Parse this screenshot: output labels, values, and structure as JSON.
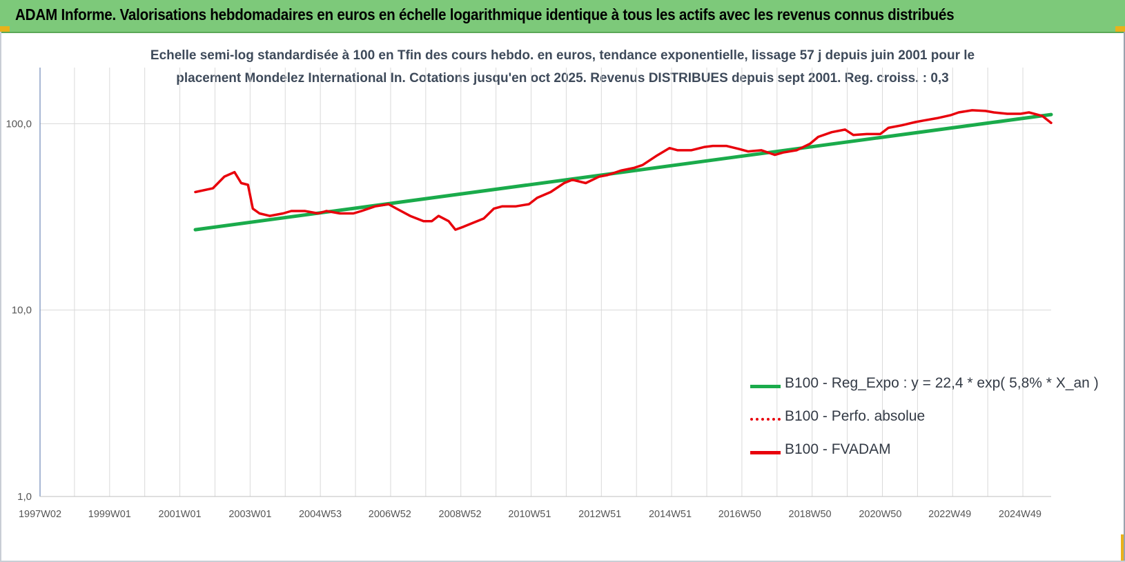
{
  "banner": {
    "title": "ADAM Informe. Valorisations hebdomadaires en euros en échelle logarithmique identique à tous les actifs avec les revenus connus distribués"
  },
  "colors": {
    "banner_bg": "#7dc97a",
    "trend": "#1aab4b",
    "fvadam": "#e8000b",
    "perf": "#e8000b",
    "grid": "#d9d9d9",
    "corner": "#e9b21a"
  },
  "chart_data": {
    "type": "line",
    "title_line1": "Echelle semi-log standardisée à 100 en Tfin des cours hebdo. en euros, tendance exponentielle, lissage 57 j depuis juin 2001 pour le",
    "title_line2": "placement Mondelez International In. Cotations jusqu'en oct 2025. Revenus DISTRIBUES depuis sept 2001. Reg. croiss. : 0,3",
    "y_scale": "log",
    "ylim": [
      1,
      200
    ],
    "y_ticks": [
      "1,0",
      "10,0",
      "100,0"
    ],
    "x_ticks": [
      "1997W02",
      "1999W01",
      "2001W01",
      "2003W01",
      "2004W53",
      "2006W52",
      "2008W52",
      "2010W51",
      "2012W51",
      "2014W51",
      "2016W50",
      "2018W50",
      "2020W50",
      "2022W49",
      "2024W49"
    ],
    "xlim": [
      "1997W02",
      "2025W43"
    ],
    "grid": true,
    "legend_position": "lower-right",
    "series": [
      {
        "name": "B100 - Reg_Expo : y = 22,4 * exp( 5,8% * X_an )",
        "style": "solid",
        "x": [
          "2001W24",
          "2025W43"
        ],
        "values": [
          27,
          112
        ]
      },
      {
        "name": "B100 - Perfo. absolue",
        "style": "dotted",
        "x": [],
        "values": []
      },
      {
        "name": "B100 - FVADAM",
        "style": "solid",
        "x": [
          "2001W24",
          "2001W50",
          "2002W15",
          "2002W30",
          "2002W40",
          "2002W50",
          "2003W05",
          "2003W15",
          "2003W30",
          "2003W50",
          "2004W10",
          "2004W30",
          "2004W50",
          "2005W10",
          "2005W30",
          "2005W50",
          "2006W10",
          "2006W30",
          "2006W50",
          "2007W10",
          "2007W30",
          "2007W50",
          "2008W10",
          "2008W20",
          "2008W35",
          "2008W45",
          "2009W05",
          "2009W15",
          "2009W35",
          "2009W50",
          "2010W10",
          "2010W30",
          "2010W50",
          "2011W10",
          "2011W30",
          "2011W50",
          "2012W10",
          "2012W30",
          "2012W50",
          "2013W10",
          "2013W30",
          "2013W50",
          "2014W10",
          "2014W30",
          "2014W50",
          "2015W10",
          "2015W30",
          "2015W50",
          "2016W10",
          "2016W30",
          "2016W50",
          "2017W10",
          "2017W30",
          "2017W50",
          "2018W10",
          "2018W30",
          "2018W50",
          "2019W10",
          "2019W30",
          "2019W50",
          "2020W10",
          "2020W30",
          "2020W50",
          "2021W10",
          "2021W30",
          "2021W50",
          "2022W10",
          "2022W30",
          "2022W50",
          "2023W10",
          "2023W30",
          "2023W50",
          "2024W10",
          "2024W30",
          "2024W50",
          "2025W10",
          "2025W30",
          "2025W43"
        ],
        "values": [
          43,
          45,
          52,
          55,
          48,
          47,
          35,
          33,
          32,
          33,
          34,
          34,
          33,
          34,
          33,
          33,
          34,
          36,
          37,
          35,
          32,
          30,
          30,
          32,
          30,
          27,
          28,
          29,
          31,
          35,
          36,
          36,
          37,
          40,
          43,
          48,
          50,
          48,
          52,
          53,
          56,
          58,
          60,
          67,
          74,
          72,
          72,
          75,
          76,
          76,
          73,
          71,
          72,
          68,
          70,
          72,
          78,
          85,
          90,
          93,
          87,
          88,
          88,
          95,
          98,
          102,
          104,
          107,
          111,
          115,
          118,
          117,
          115,
          113,
          113,
          115,
          110,
          101
        ]
      }
    ]
  }
}
